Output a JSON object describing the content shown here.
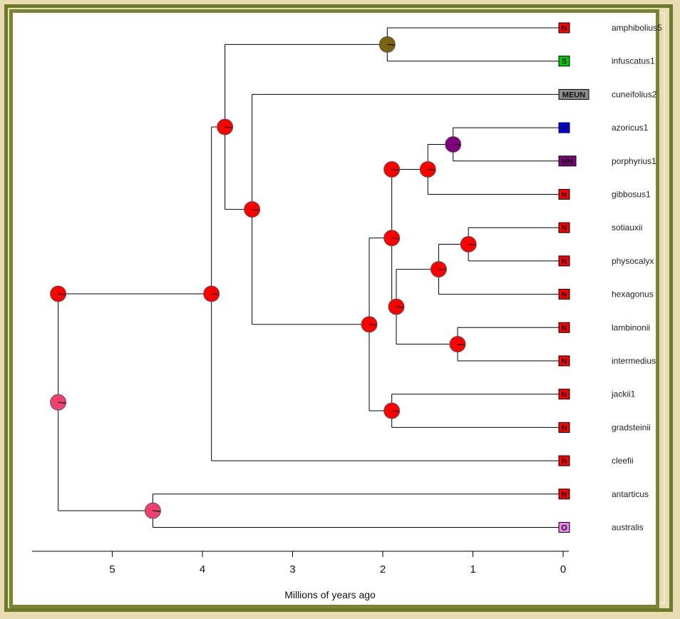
{
  "axis": {
    "title": "Millions of years ago",
    "ticks": [
      5,
      4,
      3,
      2,
      1,
      0
    ],
    "tick_labels": [
      "5",
      "4",
      "3",
      "2",
      "1",
      "0"
    ]
  },
  "colors": {
    "N": "#ff0000",
    "S": "#00cc00",
    "MEUN": "#8c8c8c",
    "M": "#0000ff",
    "MN": "#800080",
    "O": "#ee82ee",
    "olive": "#7a6410",
    "pink": "#f04070",
    "crimson": "#e0204e"
  },
  "taxa": [
    {
      "name": "amphibolius5",
      "state": "N"
    },
    {
      "name": "infuscatus1",
      "state": "S"
    },
    {
      "name": "cuneifolius2",
      "state": "MEUN"
    },
    {
      "name": "azoricus1",
      "state": "M"
    },
    {
      "name": "porphyrius1",
      "state": "MN"
    },
    {
      "name": "gibbosus1",
      "state": "N"
    },
    {
      "name": "sotiauxii",
      "state": "N"
    },
    {
      "name": "physocalyx",
      "state": "N"
    },
    {
      "name": "hexagonus",
      "state": "N"
    },
    {
      "name": "lambinonii",
      "state": "N"
    },
    {
      "name": "intermedius",
      "state": "N"
    },
    {
      "name": "jackii1",
      "state": "N"
    },
    {
      "name": "gradsteinii",
      "state": "N"
    },
    {
      "name": "cleefii",
      "state": "N"
    },
    {
      "name": "antarticus",
      "state": "N"
    },
    {
      "name": "australis",
      "state": "O"
    }
  ],
  "tree": {
    "age": 5.6,
    "color": "pink",
    "children": [
      {
        "age": 5.6,
        "color": "N",
        "children": [
          {
            "age": 3.9,
            "color": "N",
            "children": [
              {
                "age": 3.75,
                "color": "N",
                "children": [
                  {
                    "age": 1.95,
                    "color": "olive",
                    "children": [
                      {
                        "tip": 0
                      },
                      {
                        "tip": 1
                      }
                    ]
                  },
                  {
                    "age": 3.45,
                    "color": "N",
                    "children": [
                      {
                        "tip": 2
                      },
                      {
                        "age": 2.15,
                        "color": "N",
                        "children": [
                          {
                            "age": 1.9,
                            "color": "N",
                            "children": [
                              {
                                "age": 1.9,
                                "color": "N",
                                "children": [
                                  {
                                    "age": 1.5,
                                    "color": "N",
                                    "children": [
                                      {
                                        "age": 1.22,
                                        "color": "MN",
                                        "children": [
                                          {
                                            "tip": 3
                                          },
                                          {
                                            "tip": 4
                                          }
                                        ]
                                      },
                                      {
                                        "tip": 5
                                      }
                                    ]
                                  }
                                ]
                              },
                              {
                                "age": 1.85,
                                "color": "N",
                                "children": [
                                  {
                                    "age": 1.38,
                                    "color": "N",
                                    "children": [
                                      {
                                        "age": 1.05,
                                        "color": "N",
                                        "children": [
                                          {
                                            "tip": 6
                                          },
                                          {
                                            "tip": 7
                                          }
                                        ]
                                      },
                                      {
                                        "tip": 8
                                      }
                                    ]
                                  },
                                  {
                                    "age": 1.17,
                                    "color": "N",
                                    "children": [
                                      {
                                        "tip": 9
                                      },
                                      {
                                        "tip": 10
                                      }
                                    ]
                                  }
                                ]
                              }
                            ]
                          },
                          {
                            "age": 1.9,
                            "color": "N",
                            "children": [
                              {
                                "tip": 11
                              },
                              {
                                "tip": 12
                              }
                            ]
                          }
                        ]
                      }
                    ]
                  }
                ]
              },
              {
                "tip": 13
              }
            ]
          }
        ]
      },
      {
        "age": 4.55,
        "color": "pink",
        "children": [
          {
            "tip": 14
          },
          {
            "tip": 15
          }
        ]
      }
    ]
  }
}
